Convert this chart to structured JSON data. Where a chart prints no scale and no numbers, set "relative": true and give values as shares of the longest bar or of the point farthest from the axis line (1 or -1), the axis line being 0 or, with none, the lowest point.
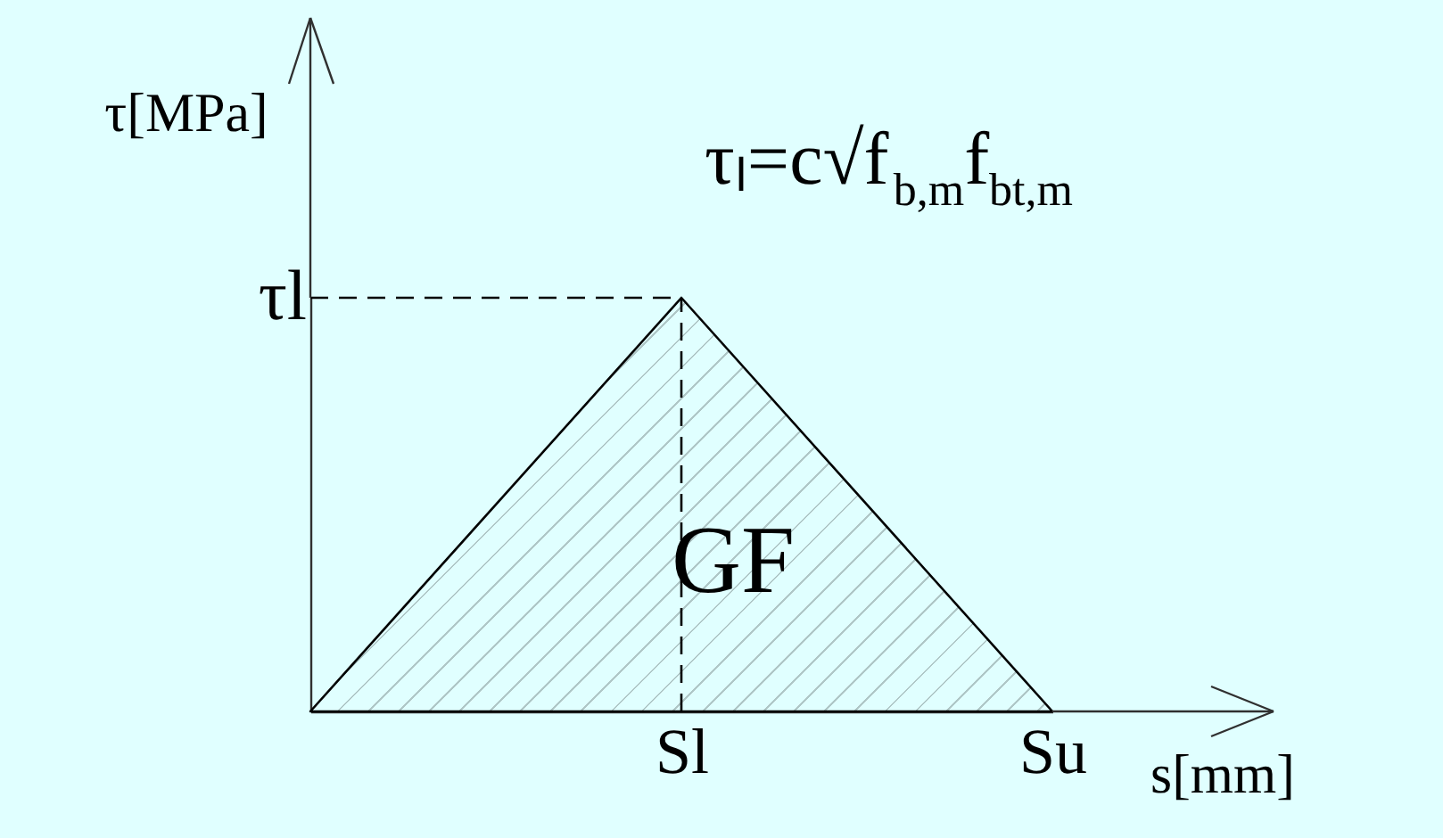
{
  "chart_data": {
    "type": "area",
    "relative": true,
    "categories": [
      null,
      "Sl",
      "Su"
    ],
    "series": [
      {
        "color": "#000000",
        "values": [
          0,
          1,
          0
        ]
      }
    ],
    "ref_lines": [
      {
        "axis": "y",
        "value": 1,
        "label": "τl",
        "color": "#000000",
        "line_style": "dashed"
      },
      {
        "axis": "x",
        "value": "Sl",
        "color": "#000000",
        "line_style": "dashed"
      }
    ],
    "xlabel": "s[mm]",
    "ylabel": "τ[MPa]",
    "annotations": [
      "τₗ=c√f$_{b,m}$f$_{bt,m}$",
      "GF"
    ]
  }
}
